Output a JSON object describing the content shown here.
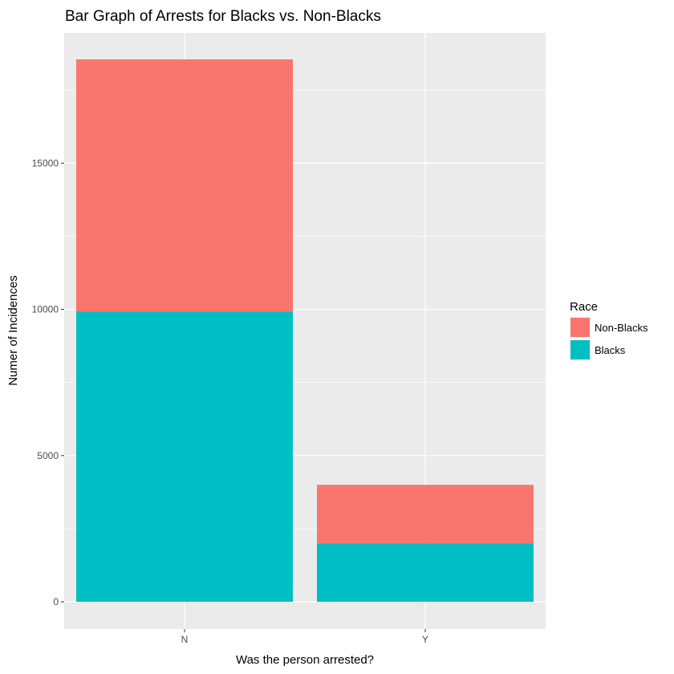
{
  "chart_data": {
    "type": "bar",
    "stacked": true,
    "title": "Bar Graph of Arrests for Blacks vs. Non-Blacks",
    "xlabel": "Was the person arrested?",
    "ylabel": "Numer of Incidences",
    "categories": [
      "N",
      "Y"
    ],
    "series": [
      {
        "name": "Blacks",
        "values": [
          9930,
          2000
        ],
        "color": "#00BFC4"
      },
      {
        "name": "Non-Blacks",
        "values": [
          8620,
          2000
        ],
        "color": "#F8766D"
      }
    ],
    "ylim": [
      0,
      18550
    ],
    "yticks": [
      0,
      5000,
      10000,
      15000
    ],
    "ytick_labels": [
      "0",
      "5000",
      "10000",
      "15000"
    ],
    "grid": true,
    "legend": {
      "title": "Race",
      "position": "right",
      "entries": [
        "Non-Blacks",
        "Blacks"
      ]
    },
    "panel_background": "#EBEBEB",
    "grid_color": "#FFFFFF"
  }
}
